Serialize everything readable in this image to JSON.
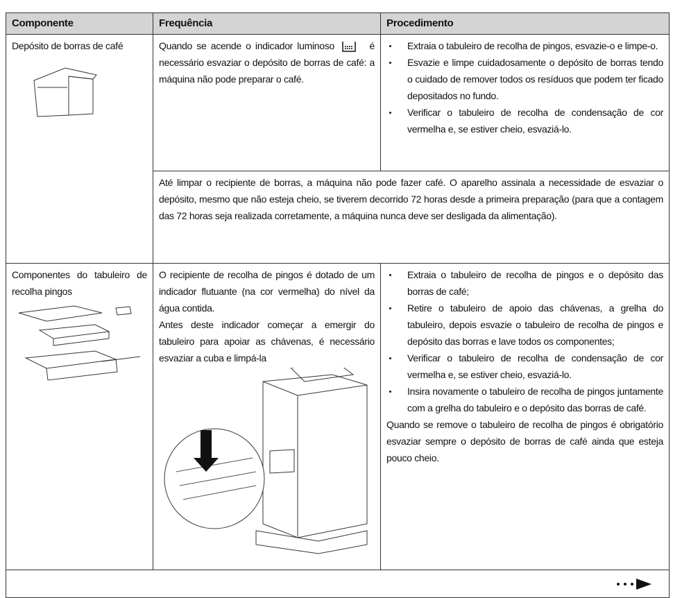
{
  "header": {
    "columns": [
      "Componente",
      "Frequência",
      "Procedimento"
    ]
  },
  "rows": [
    {
      "component": "Depósito de borras de café",
      "frequency": {
        "before_icon": "Quando se acende o indicador luminoso",
        "after_icon": "é necessário esvaziar o depósito de borras de café: a máquina não pode preparar o café."
      },
      "procedure": [
        "Extraia o tabuleiro de recolha de pingos, esvazie-o e limpe-o.",
        "Esvazie e limpe cuidadosamente o depósito de borras tendo o cuidado de remover todos os resíduos que podem ter ficado depositados no fundo.",
        "Verificar o tabuleiro de recolha de condensação de cor vermelha e, se estiver cheio, esvaziá-lo."
      ],
      "note": "Até limpar o recipiente de borras, a máquina não pode fazer café. O aparelho assinala a necessidade de esvaziar o depósito, mesmo que não esteja cheio, se tiverem decorrido 72 horas desde a primeira preparação (para que a contagem das 72 horas seja realizada corretamente, a máquina nunca deve ser desligada da alimentação)."
    },
    {
      "component": "Componentes do tabuleiro de recolha pingos",
      "frequency": [
        "O recipiente de recolha de pingos é dotado de um indicador flutuante (na cor vermelha) do nível da água contida.",
        "Antes deste indicador começar a emergir do tabuleiro para apoiar as chávenas, é necessário esvaziar a cuba e limpá-la"
      ],
      "procedure": [
        "Extraia o tabuleiro de recolha de pingos e o depósito das borras de café;",
        "Retire o tabuleiro de apoio das chávenas, a grelha do tabuleiro, depois esvazie o tabuleiro de recolha de pingos e depósito das borras e lave todos os componentes;",
        "Verificar o tabuleiro de recolha de condensação de cor vermelha e, se estiver cheio, esvaziá-lo.",
        "Insira novamente o tabuleiro de recolha de pingos juntamente com a grelha do tabuleiro e o depósito das borras de café."
      ],
      "procedure_note": "Quando se remove o tabuleiro de recolha de pingos é obrigatório esvaziar sempre o depósito de borras de café ainda que esteja pouco cheio."
    }
  ]
}
